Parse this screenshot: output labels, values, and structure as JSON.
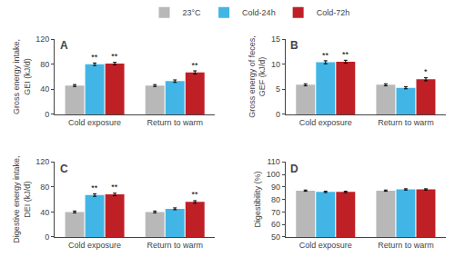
{
  "chart_data": [
    {
      "type": "bar",
      "title": "A",
      "ylabel": "Gross energy intake,\nGEI (kJ/d)",
      "categories": [
        "Cold exposure",
        "Return to warm"
      ],
      "ylim": [
        0,
        120
      ],
      "yticks": [
        0,
        40,
        80,
        120
      ],
      "grid": false,
      "legend": "top",
      "series": [
        {
          "name": "23°C",
          "color": "#b8b8b8",
          "values": [
            46,
            46
          ],
          "errors": [
            1.5,
            1.5
          ],
          "annotations": [
            null,
            null
          ]
        },
        {
          "name": "Cold-24h",
          "color": "#41b6e6",
          "values": [
            80,
            53
          ],
          "errors": [
            2.0,
            2.0
          ],
          "annotations": [
            "**",
            null
          ]
        },
        {
          "name": "Cold-72h",
          "color": "#bf2026",
          "values": [
            81,
            67
          ],
          "errors": [
            2.0,
            2.5
          ],
          "annotations": [
            "**",
            "**"
          ]
        }
      ]
    },
    {
      "type": "bar",
      "title": "B",
      "ylabel": "Gross energy of feces,\nGEF (kJ/d)",
      "categories": [
        "Cold exposure",
        "Return to warm"
      ],
      "ylim": [
        0,
        15
      ],
      "yticks": [
        0,
        5,
        10,
        15
      ],
      "grid": false,
      "series": [
        {
          "name": "23°C",
          "color": "#b8b8b8",
          "values": [
            5.9,
            5.9
          ],
          "errors": [
            0.2,
            0.2
          ],
          "annotations": [
            null,
            null
          ]
        },
        {
          "name": "Cold-24h",
          "color": "#41b6e6",
          "values": [
            10.4,
            5.3
          ],
          "errors": [
            0.3,
            0.2
          ],
          "annotations": [
            "**",
            null
          ]
        },
        {
          "name": "Cold-72h",
          "color": "#bf2026",
          "values": [
            10.5,
            7.0
          ],
          "errors": [
            0.3,
            0.3
          ],
          "annotations": [
            "**",
            "*"
          ]
        }
      ]
    },
    {
      "type": "bar",
      "title": "C",
      "ylabel": "Digestive energy intake,\nDEI (kJ/d)",
      "categories": [
        "Cold exposure",
        "Return to warm"
      ],
      "ylim": [
        0,
        120
      ],
      "yticks": [
        0,
        40,
        80,
        120
      ],
      "grid": false,
      "series": [
        {
          "name": "23°C",
          "color": "#b8b8b8",
          "values": [
            40,
            40
          ],
          "errors": [
            1.5,
            1.5
          ],
          "annotations": [
            null,
            null
          ]
        },
        {
          "name": "Cold-24h",
          "color": "#41b6e6",
          "values": [
            67,
            45
          ],
          "errors": [
            2.0,
            1.5
          ],
          "annotations": [
            "**",
            null
          ]
        },
        {
          "name": "Cold-72h",
          "color": "#bf2026",
          "values": [
            68,
            56
          ],
          "errors": [
            2.0,
            2.0
          ],
          "annotations": [
            "**",
            "**"
          ]
        }
      ]
    },
    {
      "type": "bar",
      "title": "D",
      "ylabel": "Digestibility (%)",
      "categories": [
        "Cold exposure",
        "Return to warm"
      ],
      "ylim": [
        50,
        110
      ],
      "yticks": [
        50,
        60,
        70,
        80,
        90,
        100,
        110
      ],
      "grid": false,
      "series": [
        {
          "name": "23°C",
          "color": "#b8b8b8",
          "values": [
            87,
            87
          ],
          "errors": [
            0.5,
            0.5
          ],
          "annotations": [
            null,
            null
          ]
        },
        {
          "name": "Cold-24h",
          "color": "#41b6e6",
          "values": [
            86,
            88
          ],
          "errors": [
            0.5,
            0.5
          ],
          "annotations": [
            null,
            null
          ]
        },
        {
          "name": "Cold-72h",
          "color": "#bf2026",
          "values": [
            86,
            88
          ],
          "errors": [
            0.5,
            0.5
          ],
          "annotations": [
            null,
            null
          ]
        }
      ]
    }
  ]
}
